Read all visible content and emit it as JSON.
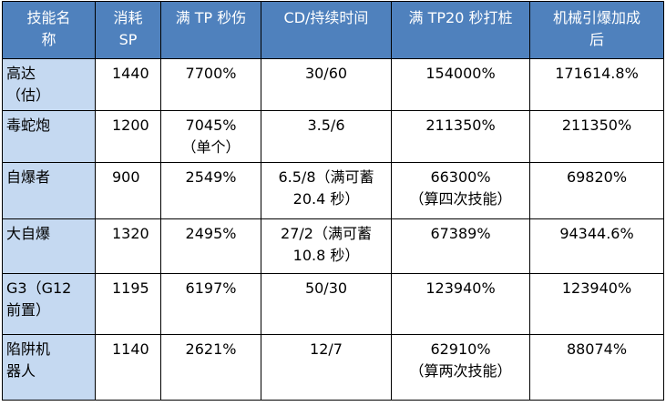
{
  "table": {
    "headers": [
      [
        "技能名",
        "称"
      ],
      [
        "消耗",
        "SP"
      ],
      [
        "满 TP 秒伤"
      ],
      [
        "CD/持续时间"
      ],
      [
        "满 TP20 秒打桩"
      ],
      [
        "机械引爆加成",
        "后"
      ]
    ],
    "rows": [
      {
        "name": [
          "高达",
          "（估）"
        ],
        "sp": [
          "1440"
        ],
        "dps": [
          "7700%"
        ],
        "cd": [
          "30/60"
        ],
        "burst20": [
          "154000%"
        ],
        "after": [
          "171614.8%"
        ]
      },
      {
        "name": [
          "毒蛇炮"
        ],
        "sp": [
          "1200"
        ],
        "dps": [
          "7045%",
          "（单个）"
        ],
        "cd": [
          "3.5/6"
        ],
        "burst20": [
          "211350%"
        ],
        "after": [
          "211350%"
        ]
      },
      {
        "name": [
          "自爆者"
        ],
        "sp": [
          "900"
        ],
        "dps": [
          "2549%"
        ],
        "cd": [
          "6.5/8（满可蓄",
          "20.4 秒）"
        ],
        "burst20": [
          "66300%",
          "（算四次技能）"
        ],
        "after": [
          "69820%"
        ]
      },
      {
        "name": [
          "大自爆"
        ],
        "sp": [
          "1320"
        ],
        "dps": [
          "2495%"
        ],
        "cd": [
          "27/2（满可蓄",
          "10.8 秒）"
        ],
        "burst20": [
          "67389%"
        ],
        "after": [
          "94344.6%"
        ]
      },
      {
        "name": [
          "G3（G12",
          "前置）"
        ],
        "sp": [
          "1195"
        ],
        "dps": [
          "6197%"
        ],
        "cd": [
          "50/30"
        ],
        "burst20": [
          "123940%"
        ],
        "after": [
          "123940%"
        ]
      },
      {
        "name": [
          "陷阱机",
          "器人"
        ],
        "sp": [
          "1140"
        ],
        "dps": [
          "2621%"
        ],
        "cd": [
          "12/7"
        ],
        "burst20": [
          "62910%",
          "（算两次技能）"
        ],
        "after": [
          "88074%"
        ]
      }
    ]
  }
}
